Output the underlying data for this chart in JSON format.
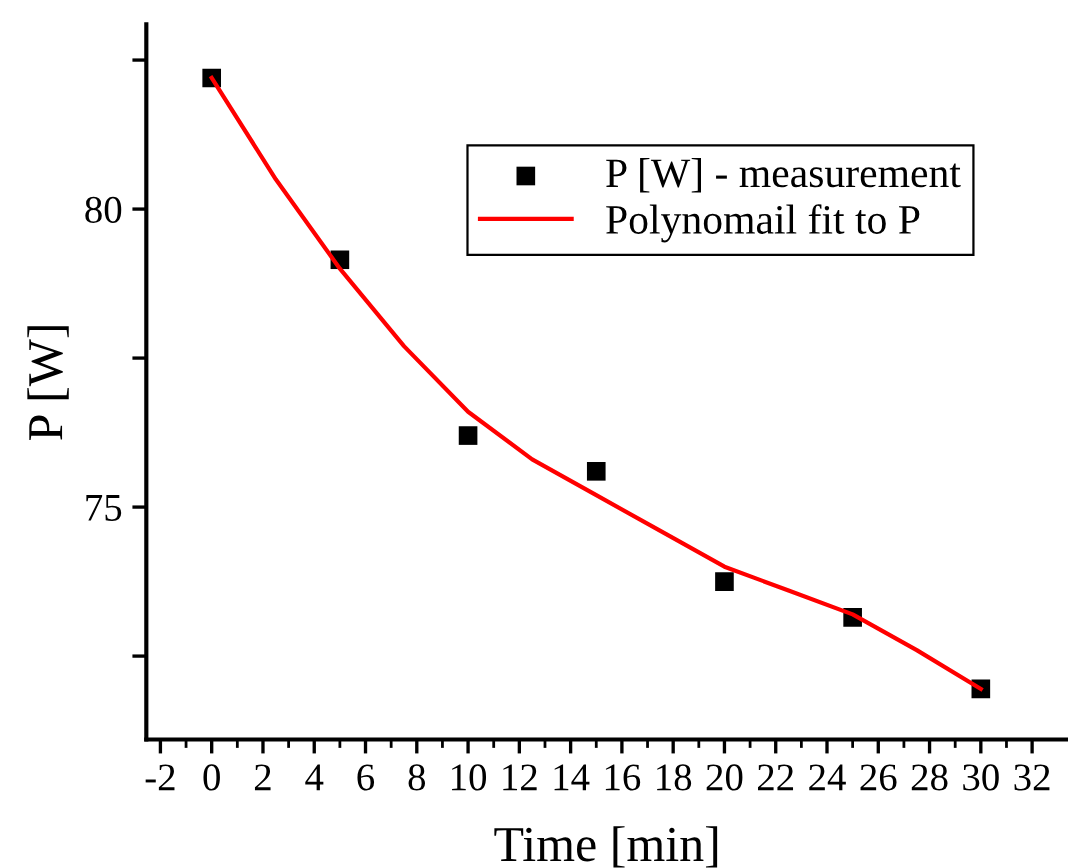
{
  "chart_data": {
    "type": "scatter",
    "xlabel": "Time [min]",
    "ylabel": "P [W]",
    "xlim": [
      -2.55,
      33.4
    ],
    "ylim": [
      71.1,
      83.1
    ],
    "xticks": [
      -2,
      0,
      2,
      4,
      6,
      8,
      10,
      12,
      14,
      16,
      18,
      20,
      22,
      24,
      26,
      28,
      30,
      32
    ],
    "yticks": [
      {
        "value": 72.5,
        "label": null
      },
      75,
      {
        "value": 77.5,
        "label": null
      },
      80,
      {
        "value": 82.5,
        "label": null
      }
    ],
    "grid": false,
    "legend": "top right",
    "series": [
      {
        "name": "P [W] - measurement",
        "marker": "square",
        "color": "#000000",
        "x": [
          0,
          5,
          10,
          15,
          20,
          25,
          30
        ],
        "values": [
          82.2,
          79.15,
          76.2,
          75.6,
          73.75,
          73.15,
          71.95
        ]
      },
      {
        "name": "Polynomail fit to P",
        "type": "line",
        "marker": "none",
        "line_style": "solid",
        "color": "#ff0000",
        "x": [
          0,
          2.5,
          5,
          7.5,
          10,
          12.5,
          15,
          17.5,
          20,
          22.5,
          25,
          27.5,
          30
        ],
        "values": [
          82.2,
          80.5,
          79.0,
          77.7,
          76.6,
          75.8,
          75.2,
          74.6,
          74.0,
          73.6,
          73.2,
          72.6,
          71.95
        ]
      }
    ]
  }
}
